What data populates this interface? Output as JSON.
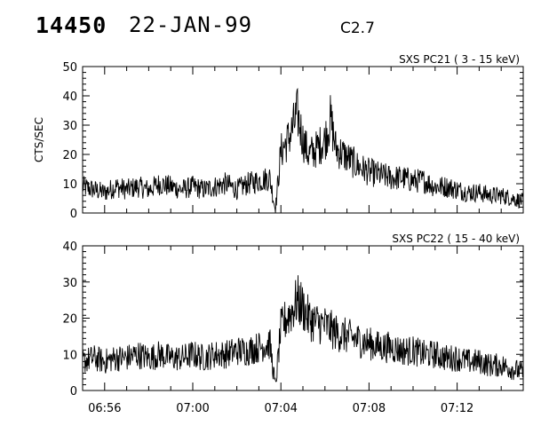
{
  "header": {
    "event_id": "14450",
    "date": "22-JAN-99",
    "flare_class": "C2.7"
  },
  "chart_data": [
    {
      "type": "line",
      "title": "SXS PC21  (  3 - 15 keV)",
      "ylabel": "CTS/SEC",
      "xlabel": "",
      "ylim": [
        0,
        50
      ],
      "yticks": [
        0,
        10,
        20,
        30,
        40,
        50
      ],
      "xticks": [
        "06:56",
        "07:00",
        "07:04",
        "07:08",
        "07:12"
      ],
      "xlim_minutes": [
        "06:55",
        "07:15"
      ],
      "series": [
        {
          "x": [
            "06:55:00",
            "06:55:30",
            "06:56:00",
            "06:56:30",
            "06:57:00",
            "06:57:30",
            "06:58:00",
            "06:58:30",
            "06:59:00",
            "06:59:30",
            "07:00:00",
            "07:00:30",
            "07:01:00",
            "07:01:30",
            "07:02:00",
            "07:02:30",
            "07:03:00",
            "07:03:30",
            "07:03:45",
            "07:04:00",
            "07:04:15",
            "07:04:30",
            "07:04:45",
            "07:05:00",
            "07:05:15",
            "07:05:30",
            "07:06:00",
            "07:06:15",
            "07:06:30",
            "07:07:00",
            "07:07:30",
            "07:08:00",
            "07:08:30",
            "07:09:00",
            "07:09:30",
            "07:10:00",
            "07:10:30",
            "07:11:00",
            "07:11:30",
            "07:12:00",
            "07:12:30",
            "07:13:00",
            "07:13:30",
            "07:14:00",
            "07:14:30",
            "07:15:00"
          ],
          "y": [
            9,
            8,
            7,
            9,
            8,
            9,
            8,
            10,
            9,
            8,
            9,
            8,
            9,
            10,
            8,
            10,
            11,
            12,
            1,
            21,
            24,
            28,
            34,
            25,
            20,
            21,
            25,
            32,
            22,
            19,
            16,
            14,
            13,
            12,
            12,
            11,
            11,
            9,
            9,
            8,
            7,
            7,
            6,
            6,
            5,
            4
          ]
        }
      ]
    },
    {
      "type": "line",
      "title": "SXS PC22  ( 15 - 40 keV)",
      "ylabel": "",
      "xlabel": "",
      "ylim": [
        0,
        40
      ],
      "yticks": [
        0,
        10,
        20,
        30,
        40
      ],
      "xticks": [
        "06:56",
        "07:00",
        "07:04",
        "07:08",
        "07:12"
      ],
      "xlim_minutes": [
        "06:55",
        "07:15"
      ],
      "series": [
        {
          "x": [
            "06:55:00",
            "06:55:30",
            "06:56:00",
            "06:56:30",
            "06:57:00",
            "06:57:30",
            "06:58:00",
            "06:58:30",
            "06:59:00",
            "06:59:30",
            "07:00:00",
            "07:00:30",
            "07:01:00",
            "07:01:30",
            "07:02:00",
            "07:02:30",
            "07:03:00",
            "07:03:30",
            "07:03:45",
            "07:04:00",
            "07:04:15",
            "07:04:30",
            "07:04:45",
            "07:05:00",
            "07:05:15",
            "07:05:30",
            "07:06:00",
            "07:06:30",
            "07:07:00",
            "07:07:30",
            "07:08:00",
            "07:08:30",
            "07:09:00",
            "07:09:30",
            "07:10:00",
            "07:10:30",
            "07:11:00",
            "07:11:30",
            "07:12:00",
            "07:12:30",
            "07:13:00",
            "07:13:30",
            "07:14:00",
            "07:14:30",
            "07:15:00"
          ],
          "y": [
            8,
            9,
            8,
            9,
            9,
            10,
            9,
            10,
            9,
            9,
            10,
            9,
            10,
            10,
            11,
            11,
            12,
            13,
            1,
            17,
            20,
            22,
            25,
            23,
            20,
            19,
            18,
            16,
            15,
            14,
            13,
            12,
            12,
            11,
            11,
            10,
            10,
            9,
            9,
            8,
            8,
            7,
            7,
            6,
            5
          ]
        }
      ]
    }
  ]
}
